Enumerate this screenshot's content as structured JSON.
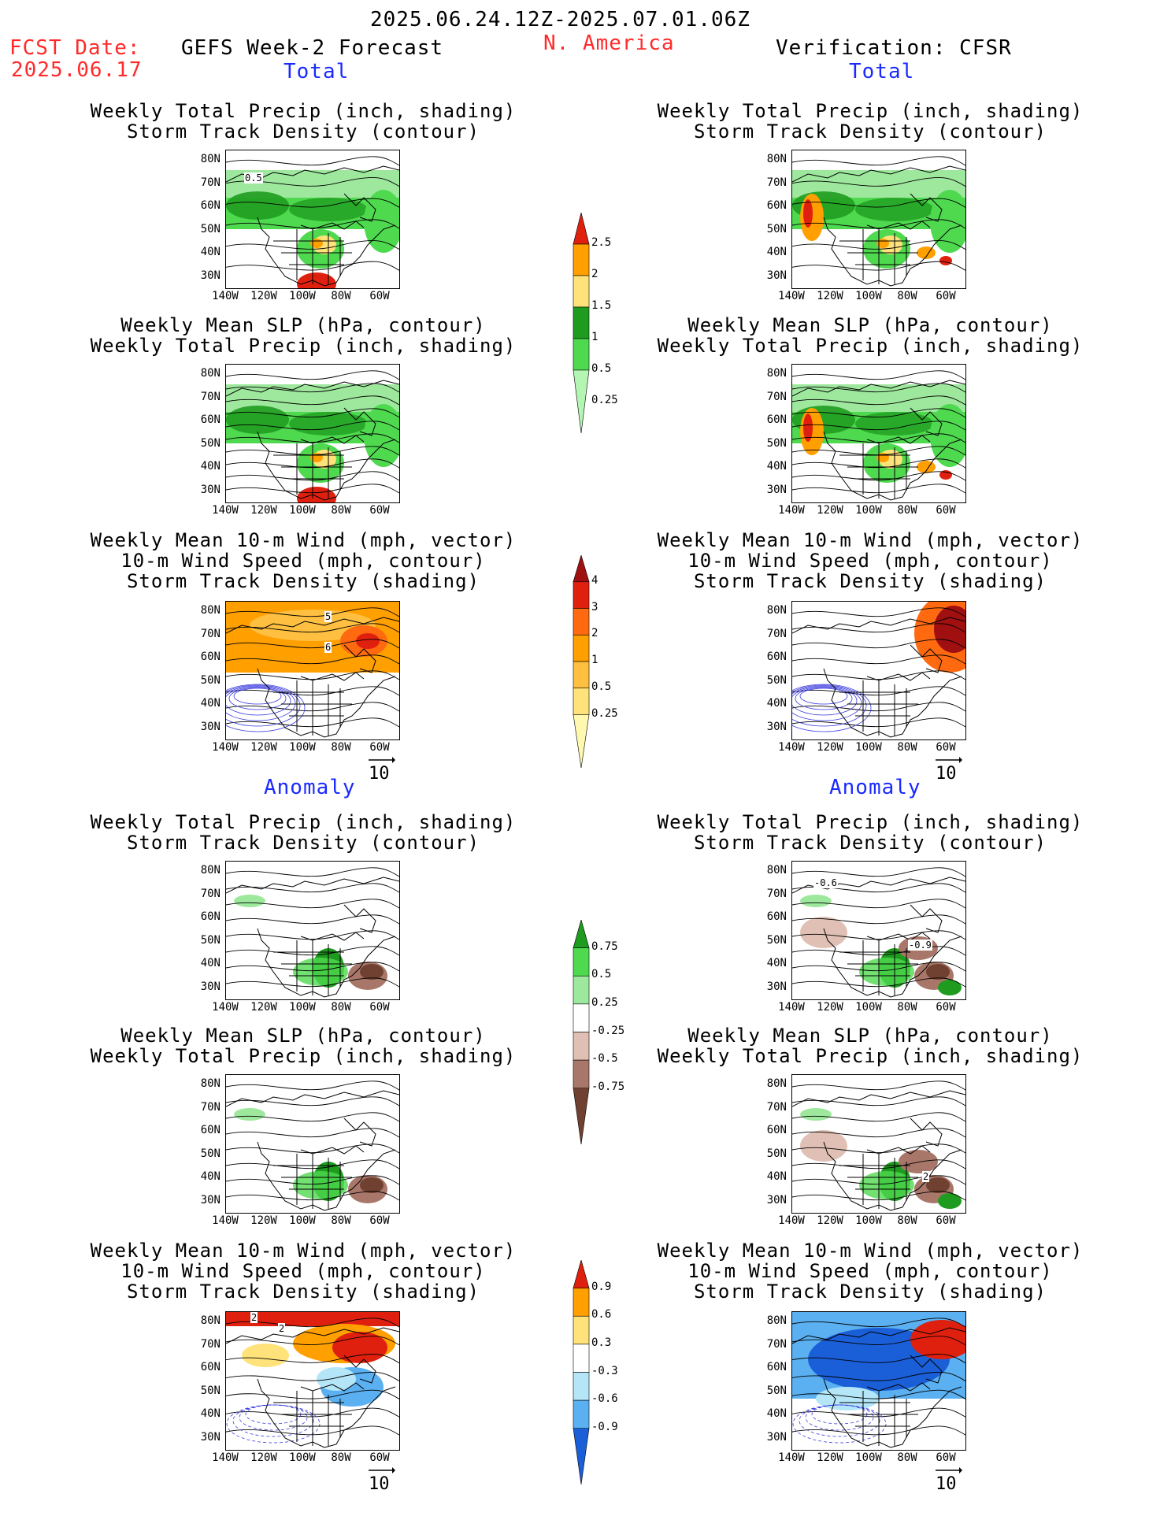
{
  "header": {
    "date_range": "2025.06.24.12Z-2025.07.01.06Z",
    "fcst_label": "FCST Date:",
    "fcst_date": "2025.06.17",
    "left_heading": "GEFS Week-2 Forecast",
    "region": "N. America",
    "right_heading": "Verification: CFSR"
  },
  "sections": {
    "total": "Total",
    "anomaly": "Anomaly"
  },
  "panel_titles": {
    "precip_storm": "Weekly Total Precip (inch, shading)\nStorm Track Density (contour)",
    "slp_precip": "Weekly Mean SLP (hPa, contour)\nWeekly Total Precip (inch, shading)",
    "wind_storm": "Weekly Mean 10-m Wind (mph, vector)\n10-m Wind Speed (mph, contour)\nStorm Track Density (shading)"
  },
  "axes": {
    "lat_ticks": [
      "80N",
      "70N",
      "60N",
      "50N",
      "40N",
      "30N"
    ],
    "lon_ticks": [
      "140W",
      "120W",
      "100W",
      "80W",
      "60W"
    ]
  },
  "vector_reference": "10",
  "colorbars": {
    "precip_total": {
      "labels": [
        "2.5",
        "2",
        "1.5",
        "1",
        "0.5",
        "0.25"
      ],
      "colors": [
        "#e0200f",
        "#ff9f00",
        "#ffe27a",
        "#1f9c1f",
        "#4fd94f",
        "#b4f5b4"
      ]
    },
    "storm_total": {
      "labels": [
        "4",
        "3",
        "2",
        "1",
        "0.5",
        "0.25"
      ],
      "colors": [
        "#a01010",
        "#e0200f",
        "#ff6a10",
        "#ff9f00",
        "#ffbf40",
        "#ffe27a",
        "#fff8b0"
      ]
    },
    "precip_anomaly": {
      "labels": [
        "0.75",
        "0.5",
        "0.25",
        "-0.25",
        "-0.5",
        "-0.75"
      ],
      "colors": [
        "#1f9c1f",
        "#4fd94f",
        "#9ee89e",
        "#ffffff",
        "#e0c0b4",
        "#a8776a",
        "#704030"
      ]
    },
    "storm_anomaly": {
      "labels": [
        "0.9",
        "0.6",
        "0.3",
        "-0.3",
        "-0.6",
        "-0.9"
      ],
      "colors": [
        "#e0200f",
        "#ff9f00",
        "#ffe27a",
        "#ffffff",
        "#b4e6f8",
        "#5ab0f0",
        "#1a5fd8"
      ]
    }
  },
  "contour_labels": {
    "fcst_total_precip": "0.5",
    "fcst_total_wind_a": "5",
    "fcst_total_wind_b": "6",
    "fcst_anom_wind_a": "2",
    "fcst_anom_wind_b": "2",
    "obs_anom_precip_a": "-0.6",
    "obs_anom_precip_b": "-0.9",
    "obs_anom_slp": "2"
  }
}
